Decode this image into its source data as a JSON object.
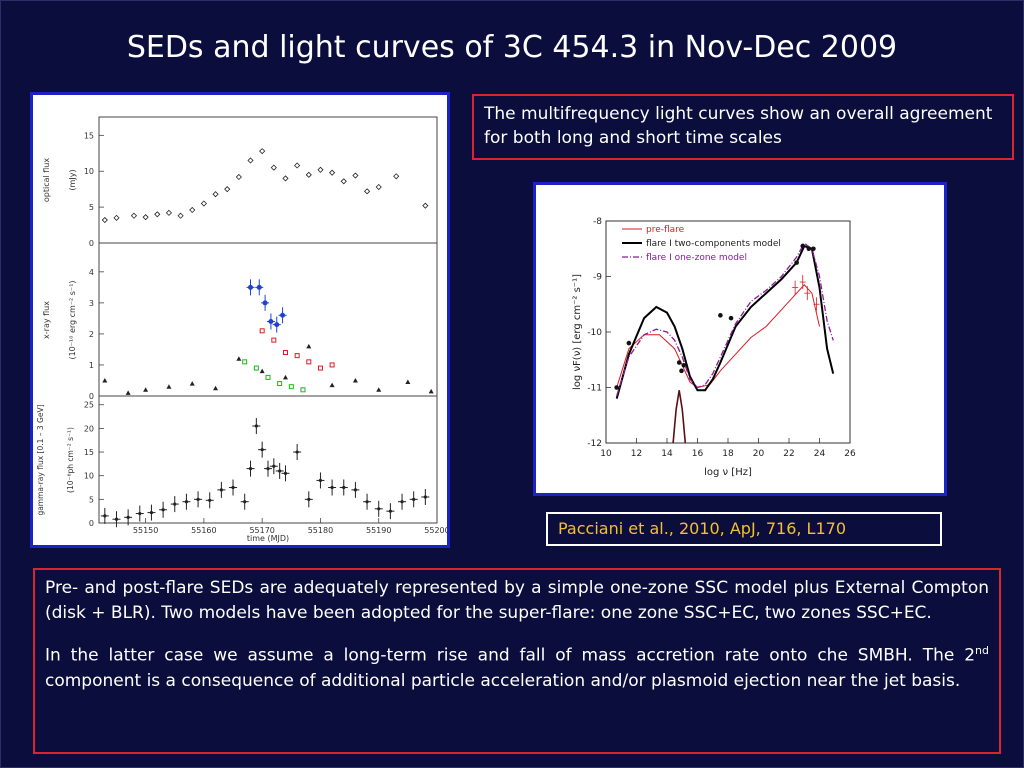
{
  "slide": {
    "title": "SEDs and light curves of 3C 454.3 in Nov-Dec 2009",
    "top_note": "The multifrequency light curves show an overall agreement for both long and short time scales",
    "citation": "Pacciani et al., 2010, ApJ, 716, L170",
    "paragraph1": "Pre- and post-flare SEDs are adequately represented by a simple one-zone SSC model plus External Compton (disk + BLR). Two models have been adopted for the super-flare: one zone SSC+EC, two zones SSC+EC.",
    "paragraph2_start": "In the latter case we assume a long-term rise and fall of mass accretion rate onto che SMBH. The  2",
    "paragraph2_sup": "nd",
    "paragraph2_end": " component is a consequence of additional particle acceleration and/or plasmoid ejection near the jet basis."
  },
  "lightcurve_figure": {
    "optical_label": "optical flux",
    "optical_unit": "(mJy)",
    "xray_label": "x-ray flux",
    "xray_unit": "(10⁻¹⁰ erg cm⁻² s⁻¹)",
    "gamma_label": "gamma-ray flux [0.1 – 3 GeV]",
    "gamma_unit": "(10⁻⁶ph cm⁻² s⁻¹)",
    "xlabel": "time (MJD)",
    "xticks": [
      "55150",
      "55160",
      "55170",
      "55180",
      "55190",
      "55200"
    ],
    "optical_yticks": [
      "0",
      "5",
      "10",
      "15"
    ],
    "xray_yticks": [
      "0",
      "1",
      "2",
      "3",
      "4"
    ],
    "gamma_yticks": [
      "0",
      "5",
      "10",
      "15",
      "20",
      "25"
    ]
  },
  "sed_figure": {
    "legend": [
      "pre-flare",
      "flare I two-components model",
      "flare I one-zone model"
    ],
    "xlabel": "log ν  [Hz]",
    "ylabel": "log νF(ν)  [erg cm⁻² s⁻¹]",
    "xticks": [
      "10",
      "12",
      "14",
      "16",
      "18",
      "20",
      "22",
      "24",
      "26"
    ],
    "yticks": [
      "-8",
      "-9",
      "-10",
      "-11",
      "-12"
    ],
    "colors": {
      "preflare": "#e0191f",
      "two_component": "#000000",
      "one_zone": "#8b1a9a"
    }
  },
  "colors": {
    "background": "#0b0e3d",
    "title": "#ffffff",
    "box_border": "#d8262c",
    "panel_border": "#1a22c8",
    "citation_text": "#f2c12e"
  },
  "chart_data": [
    {
      "type": "scatter",
      "title": "",
      "xlabel": "time (MJD)",
      "ylabel": "optical flux (mJy)",
      "xlim": [
        55142,
        55200
      ],
      "ylim": [
        0,
        17
      ],
      "series": [
        {
          "x": [
            55143,
            55145,
            55148,
            55150,
            55152,
            55154,
            55156,
            55158,
            55160,
            55162,
            55164,
            55166,
            55168,
            55170,
            55172,
            55174,
            55176,
            55178,
            55180,
            55182,
            55184,
            55186,
            55188,
            55190,
            55193,
            55198
          ],
          "y": [
            3.2,
            3.5,
            3.8,
            3.6,
            4.0,
            4.2,
            3.8,
            4.6,
            5.5,
            6.8,
            7.5,
            9.2,
            11.5,
            12.8,
            10.5,
            9.0,
            10.8,
            9.5,
            10.2,
            9.8,
            8.6,
            9.4,
            7.2,
            7.8,
            9.3,
            5.2
          ]
        }
      ]
    },
    {
      "type": "scatter",
      "title": "",
      "xlabel": "time (MJD)",
      "ylabel": "x-ray flux (10^-10 erg cm^-2 s^-1)",
      "xlim": [
        55142,
        55200
      ],
      "ylim": [
        0,
        4.8
      ],
      "series": [
        {
          "x": [
            55168,
            55169.5,
            55170.5,
            55171.5,
            55172.5,
            55173.5
          ],
          "y": [
            3.5,
            3.5,
            3.0,
            2.4,
            2.3,
            2.6
          ]
        },
        {
          "x": [
            55143,
            55147,
            55150,
            55154,
            55158,
            55162,
            55166,
            55170,
            55174,
            55178,
            55182,
            55186,
            55190,
            55195,
            55199
          ],
          "y": [
            0.5,
            0.1,
            0.2,
            0.3,
            0.4,
            0.25,
            1.2,
            0.8,
            0.6,
            1.6,
            0.35,
            0.5,
            0.2,
            0.45,
            0.15
          ]
        },
        {
          "x": [
            55170,
            55172,
            55174,
            55176,
            55178,
            55180,
            55182
          ],
          "y": [
            2.1,
            1.8,
            1.4,
            1.3,
            1.1,
            0.9,
            1.0
          ]
        },
        {
          "x": [
            55167,
            55169,
            55171,
            55173,
            55175,
            55177
          ],
          "y": [
            1.1,
            0.9,
            0.6,
            0.4,
            0.3,
            0.2
          ]
        }
      ]
    },
    {
      "type": "scatter",
      "title": "",
      "xlabel": "time (MJD)",
      "ylabel": "gamma-ray flux [0.1 - 3 GeV] (10^-6 ph cm^-2 s^-1)",
      "xlim": [
        55142,
        55200
      ],
      "ylim": [
        0,
        26
      ],
      "series": [
        {
          "x": [
            55143,
            55145,
            55147,
            55149,
            55151,
            55153,
            55155,
            55157,
            55159,
            55161,
            55163,
            55165,
            55167,
            55168,
            55169,
            55170,
            55171,
            55172,
            55173,
            55174,
            55176,
            55178,
            55180,
            55182,
            55184,
            55186,
            55188,
            55190,
            55192,
            55194,
            55196,
            55198
          ],
          "y": [
            1.5,
            0.8,
            1.2,
            2.0,
            2.2,
            2.8,
            4.0,
            4.5,
            5.0,
            4.8,
            7.0,
            7.5,
            4.5,
            11.5,
            20.5,
            15.5,
            11.5,
            12.0,
            11.0,
            10.5,
            15.0,
            5.0,
            9.0,
            7.5,
            7.5,
            7.0,
            4.5,
            3.0,
            2.5,
            4.5,
            5.0,
            5.5
          ]
        }
      ]
    },
    {
      "type": "line",
      "title": "",
      "xlabel": "log ν  [Hz]",
      "ylabel": "log νF(ν)  [erg cm⁻² s⁻¹]",
      "xlim": [
        10,
        26
      ],
      "ylim": [
        -12,
        -8
      ],
      "series": [
        {
          "name": "pre-flare",
          "x": [
            10.7,
            11.5,
            12.5,
            13.5,
            14.5,
            15.0,
            15.5,
            16.0,
            16.8,
            17.5,
            18.5,
            19.5,
            20.5,
            21.5,
            22.5,
            23.0,
            23.5,
            24.0
          ],
          "y": [
            -11.0,
            -10.3,
            -10.05,
            -10.05,
            -10.3,
            -10.6,
            -10.9,
            -11.0,
            -10.95,
            -10.7,
            -10.4,
            -10.1,
            -9.9,
            -9.6,
            -9.3,
            -9.15,
            -9.3,
            -9.9
          ]
        },
        {
          "name": "flare I two-components model",
          "x": [
            10.7,
            11.5,
            12.5,
            13.3,
            14.0,
            14.5,
            15.0,
            15.5,
            16.0,
            16.5,
            17.0,
            17.5,
            18.5,
            19.5,
            20.5,
            21.5,
            22.5,
            23.0,
            23.5,
            24.0,
            24.5,
            24.9
          ],
          "y": [
            -11.2,
            -10.4,
            -9.75,
            -9.55,
            -9.65,
            -9.9,
            -10.3,
            -10.8,
            -11.05,
            -11.05,
            -10.85,
            -10.55,
            -9.9,
            -9.55,
            -9.3,
            -9.05,
            -8.75,
            -8.45,
            -8.5,
            -9.2,
            -10.3,
            -10.75
          ]
        },
        {
          "name": "flare I one-zone model",
          "x": [
            10.7,
            11.5,
            12.5,
            13.3,
            14.0,
            14.5,
            15.0,
            15.5,
            16.0,
            16.5,
            17.0,
            17.5,
            18.5,
            19.5,
            20.5,
            21.5,
            22.5,
            23.0,
            23.5,
            24.0,
            24.5,
            24.9
          ],
          "y": [
            -11.15,
            -10.45,
            -10.05,
            -9.95,
            -10.0,
            -10.15,
            -10.45,
            -10.85,
            -11.0,
            -10.95,
            -10.75,
            -10.45,
            -9.85,
            -9.45,
            -9.25,
            -9.0,
            -8.65,
            -8.4,
            -8.5,
            -9.0,
            -9.8,
            -10.15
          ]
        }
      ]
    }
  ]
}
